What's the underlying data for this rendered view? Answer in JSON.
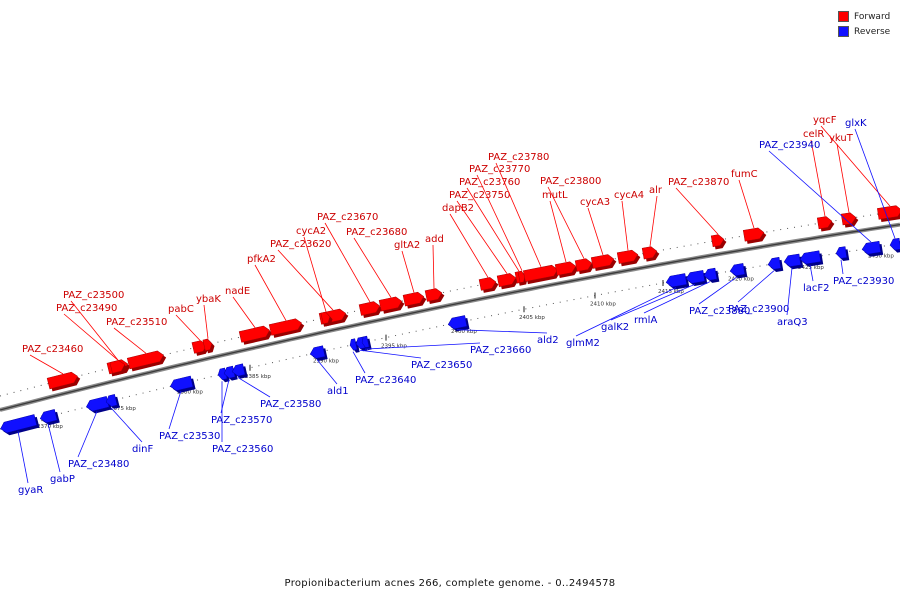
{
  "legend": {
    "forward_label": "Forward",
    "reverse_label": "Reverse",
    "forward_color": "#ff0000",
    "reverse_color": "#1010ff"
  },
  "caption": "Propionibacterium acnes 266, complete genome. - 0..2494578",
  "scale_ticks": [
    "2370 kbp",
    "2375 kbp",
    "2380 kbp",
    "2385 kbp",
    "2390 kbp",
    "2395 kbp",
    "2400 kbp",
    "2405 kbp",
    "2410 kbp",
    "2415 kbp",
    "2420 kbp",
    "2425 kbp",
    "2430 kbp"
  ],
  "forward_genes": [
    "PAZ_c23460",
    "PAZ_c23490",
    "PAZ_c23500",
    "PAZ_c23510",
    "pabC",
    "ybaK",
    "nadE",
    "pfkA2",
    "PAZ_c23620",
    "cycA2",
    "PAZ_c23670",
    "PAZ_c23680",
    "gltA2",
    "add",
    "dapB2",
    "PAZ_c23750",
    "PAZ_c23760",
    "PAZ_c23770",
    "PAZ_c23780",
    "mutL",
    "PAZ_c23800",
    "cycA3",
    "cycA4",
    "alr",
    "PAZ_c23870",
    "fumC",
    "celR",
    "ykuT",
    "yqcF"
  ],
  "reverse_genes": [
    "gyaR",
    "gabP",
    "PAZ_c23480",
    "dinF",
    "PAZ_c23530",
    "PAZ_c23560",
    "PAZ_c23570",
    "PAZ_c23580",
    "ald1",
    "PAZ_c23640",
    "PAZ_c23650",
    "PAZ_c23660",
    "ald2",
    "glmM2",
    "galK2",
    "rmlA",
    "PAZ_c23880",
    "PAZ_c23900",
    "araQ3",
    "lacF2",
    "PAZ_c23930",
    "PAZ_c23940",
    "glxK"
  ]
}
